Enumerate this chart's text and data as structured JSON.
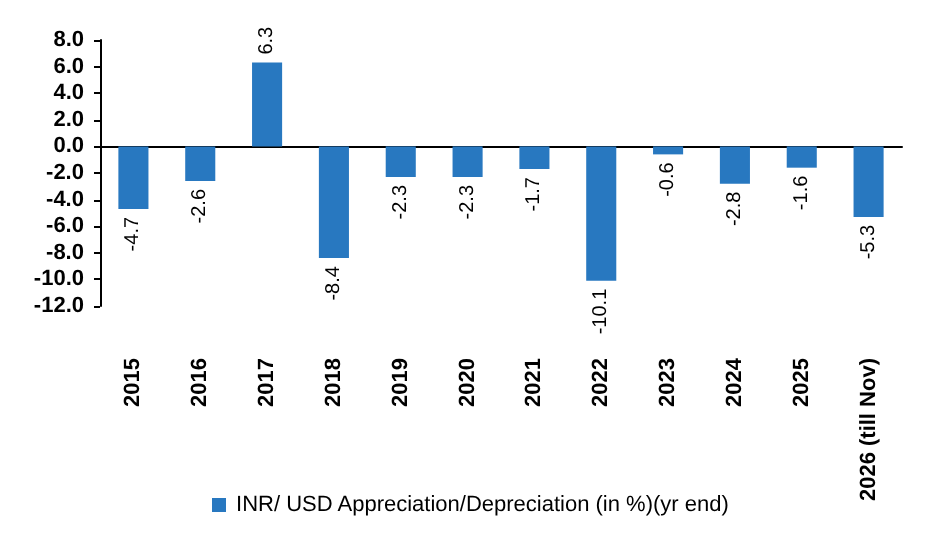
{
  "chart_data": {
    "type": "bar",
    "categories": [
      "2015",
      "2016",
      "2017",
      "2018",
      "2019",
      "2020",
      "2021",
      "2022",
      "2023",
      "2024",
      "2025",
      "2026 (till Nov)"
    ],
    "series": [
      {
        "name": "INR/ USD Appreciation/Depreciation (in %)(yr end)",
        "color": "#2878c0",
        "values": [
          -4.7,
          -2.6,
          6.3,
          -8.4,
          -2.3,
          -2.3,
          -1.7,
          -10.1,
          -0.6,
          -2.8,
          -1.6,
          -5.3
        ]
      }
    ],
    "ylim": [
      -12,
      8
    ],
    "yticks": [
      {
        "value": -12,
        "label": "-12.0"
      },
      {
        "value": -10,
        "label": "-10.0"
      },
      {
        "value": -8,
        "label": "-8.0"
      },
      {
        "value": -6,
        "label": "-6.0"
      },
      {
        "value": -4,
        "label": "-4.0"
      },
      {
        "value": -2,
        "label": "-2.0"
      },
      {
        "value": 0,
        "label": "0.0"
      },
      {
        "value": 2,
        "label": "2.0"
      },
      {
        "value": 4,
        "label": "4.0"
      },
      {
        "value": 6,
        "label": "6.0"
      },
      {
        "value": 8,
        "label": "8.0"
      }
    ],
    "data_labels": true,
    "legend": "bottom"
  }
}
